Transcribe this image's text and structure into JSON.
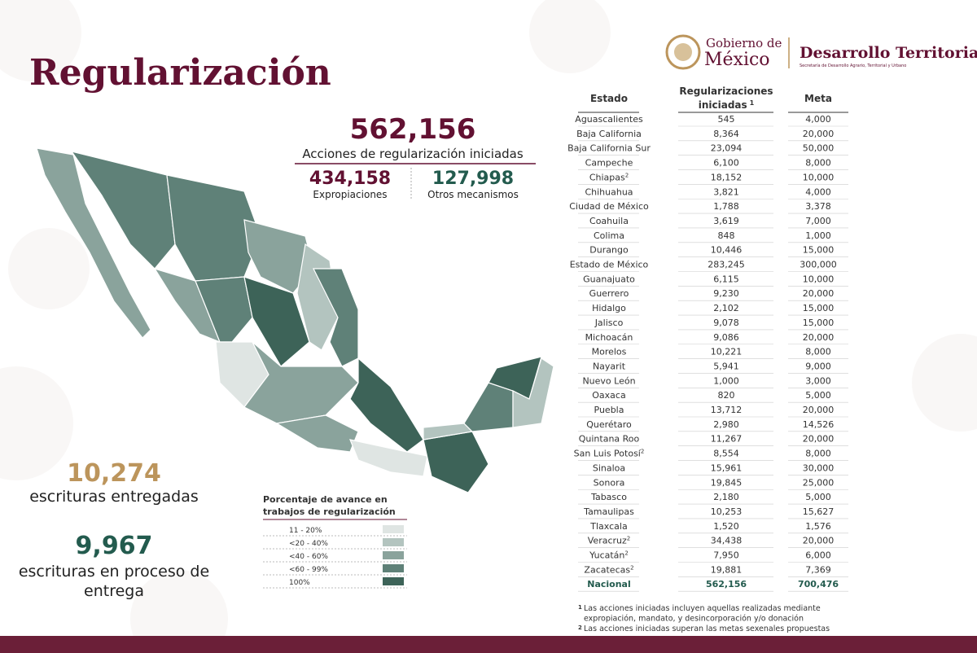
{
  "header": {
    "title": "Regularización",
    "logo_line1": "Gobierno de",
    "logo_line2": "México",
    "logo_agency": "Desarrollo Territorial",
    "logo_agency_sub": "Secretaría de Desarrollo Agrario, Territorial y Urbano"
  },
  "summary": {
    "total": "562,156",
    "total_label": "Acciones de regularización iniciadas",
    "expropiaciones": "434,158",
    "expropiaciones_label": "Expropiaciones",
    "otros": "127,998",
    "otros_label": "Otros mecanismos"
  },
  "escrituras": {
    "entregadas": "10,274",
    "entregadas_label": "escrituras entregadas",
    "proceso": "9,967",
    "proceso_label": [
      "escrituras en proceso de",
      "entrega"
    ]
  },
  "legend": {
    "title": [
      "Porcentaje de avance en",
      "trabajos de regularización"
    ],
    "items": [
      {
        "label": "11 - 20%",
        "color": "#dfe5e3"
      },
      {
        "label": "<20 - 40%",
        "color": "#b3c4bf"
      },
      {
        "label": "<40 - 60%",
        "color": "#8aa39c"
      },
      {
        "label": "<60 - 99%",
        "color": "#5f8178"
      },
      {
        "label": "100%",
        "color": "#3d6358"
      }
    ]
  },
  "table": {
    "columns": {
      "estado": "Estado",
      "iniciadas": [
        "Regularizaciones",
        "iniciadas"
      ],
      "iniciadas_note": "1",
      "meta": "Meta"
    },
    "rows": [
      {
        "estado": "Aguascalientes",
        "iniciadas": "545",
        "meta": "4,000"
      },
      {
        "estado": "Baja California",
        "iniciadas": "8,364",
        "meta": "20,000"
      },
      {
        "estado": "Baja California Sur",
        "iniciadas": "23,094",
        "meta": "50,000"
      },
      {
        "estado": "Campeche",
        "iniciadas": "6,100",
        "meta": "8,000"
      },
      {
        "estado": "Chiapas",
        "nota": "2",
        "iniciadas": "18,152",
        "meta": "10,000"
      },
      {
        "estado": "Chihuahua",
        "iniciadas": "3,821",
        "meta": "4,000"
      },
      {
        "estado": "Ciudad de México",
        "iniciadas": "1,788",
        "meta": "3,378"
      },
      {
        "estado": "Coahuila",
        "iniciadas": "3,619",
        "meta": "7,000"
      },
      {
        "estado": "Colima",
        "iniciadas": "848",
        "meta": "1,000"
      },
      {
        "estado": "Durango",
        "iniciadas": "10,446",
        "meta": "15,000"
      },
      {
        "estado": "Estado de México",
        "iniciadas": "283,245",
        "meta": "300,000"
      },
      {
        "estado": "Guanajuato",
        "iniciadas": "6,115",
        "meta": "10,000"
      },
      {
        "estado": "Guerrero",
        "iniciadas": "9,230",
        "meta": "20,000"
      },
      {
        "estado": "Hidalgo",
        "iniciadas": "2,102",
        "meta": "15,000"
      },
      {
        "estado": "Jalisco",
        "iniciadas": "9,078",
        "meta": "15,000"
      },
      {
        "estado": "Michoacán",
        "iniciadas": "9,086",
        "meta": "20,000"
      },
      {
        "estado": "Morelos",
        "iniciadas": "10,221",
        "meta": "8,000"
      },
      {
        "estado": "Nayarit",
        "iniciadas": "5,941",
        "meta": "9,000"
      },
      {
        "estado": "Nuevo León",
        "iniciadas": "1,000",
        "meta": "3,000"
      },
      {
        "estado": "Oaxaca",
        "iniciadas": "820",
        "meta": "5,000"
      },
      {
        "estado": "Puebla",
        "iniciadas": "13,712",
        "meta": "20,000"
      },
      {
        "estado": "Querétaro",
        "iniciadas": "2,980",
        "meta": "14,526"
      },
      {
        "estado": "Quintana Roo",
        "iniciadas": "11,267",
        "meta": "20,000"
      },
      {
        "estado": "San Luis Potosí",
        "nota": "2",
        "iniciadas": "8,554",
        "meta": "8,000"
      },
      {
        "estado": "Sinaloa",
        "iniciadas": "15,961",
        "meta": "30,000"
      },
      {
        "estado": "Sonora",
        "iniciadas": "19,845",
        "meta": "25,000"
      },
      {
        "estado": "Tabasco",
        "iniciadas": "2,180",
        "meta": "5,000"
      },
      {
        "estado": "Tamaulipas",
        "iniciadas": "10,253",
        "meta": "15,627"
      },
      {
        "estado": "Tlaxcala",
        "iniciadas": "1,520",
        "meta": "1,576"
      },
      {
        "estado": "Veracruz",
        "nota": "2",
        "iniciadas": "34,438",
        "meta": "20,000"
      },
      {
        "estado": "Yucatán",
        "nota": "2",
        "iniciadas": "7,950",
        "meta": "6,000"
      },
      {
        "estado": "Zacatecas",
        "nota": "2",
        "iniciadas": "19,881",
        "meta": "7,369"
      }
    ],
    "total": {
      "estado": "Nacional",
      "iniciadas": "562,156",
      "meta": "700,476"
    }
  },
  "footnotes": [
    {
      "mark": "1",
      "lines": [
        "Las acciones iniciadas incluyen aquellas realizadas mediante",
        "expropiación, mandato, y desincorporación y/o donación"
      ]
    },
    {
      "mark": "2",
      "lines": [
        "Las acciones iniciadas superan las metas sexenales propuestas"
      ]
    }
  ]
}
